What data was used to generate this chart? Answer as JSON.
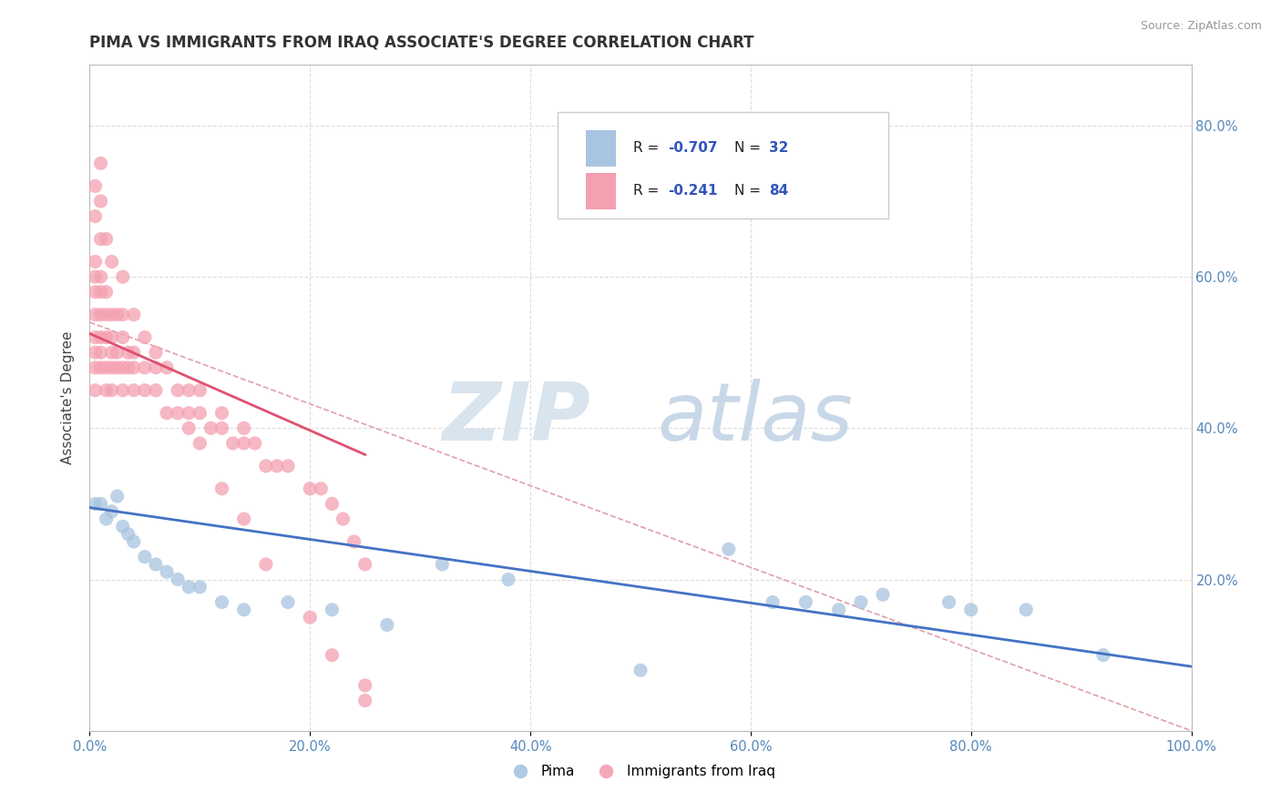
{
  "title": "PIMA VS IMMIGRANTS FROM IRAQ ASSOCIATE'S DEGREE CORRELATION CHART",
  "source": "Source: ZipAtlas.com",
  "ylabel": "Associate's Degree",
  "xlim": [
    0.0,
    1.0
  ],
  "ylim": [
    0.0,
    0.88
  ],
  "xtick_vals": [
    0.0,
    0.2,
    0.4,
    0.6,
    0.8,
    1.0
  ],
  "xtick_labels": [
    "0.0%",
    "20.0%",
    "40.0%",
    "60.0%",
    "80.0%",
    "100.0%"
  ],
  "ytick_vals": [
    0.2,
    0.4,
    0.6,
    0.8
  ],
  "ytick_labels": [
    "20.0%",
    "40.0%",
    "60.0%",
    "80.0%"
  ],
  "blue_scatter_color": "#A8C4E0",
  "pink_scatter_color": "#F4A0B0",
  "blue_line_color": "#4472C4",
  "pink_line_color": "#E05070",
  "dashed_line_color": "#E0A0A8",
  "grid_color": "#DDDDDD",
  "title_color": "#333333",
  "tick_color": "#5588BB",
  "watermark_zip_color": "#D8E4EE",
  "watermark_atlas_color": "#C8D8E8",
  "legend_box_color": "#F5F5F5",
  "legend_box_edge": "#DDDDDD",
  "legend_text_color": "#222222",
  "legend_value_color": "#3355AA",
  "pima_x": [
    0.005,
    0.01,
    0.015,
    0.02,
    0.025,
    0.03,
    0.035,
    0.04,
    0.05,
    0.06,
    0.07,
    0.08,
    0.09,
    0.1,
    0.12,
    0.14,
    0.18,
    0.22,
    0.27,
    0.32,
    0.38,
    0.5,
    0.58,
    0.62,
    0.65,
    0.68,
    0.7,
    0.72,
    0.78,
    0.8,
    0.85,
    0.92
  ],
  "pima_y": [
    0.3,
    0.3,
    0.28,
    0.29,
    0.31,
    0.27,
    0.26,
    0.25,
    0.23,
    0.22,
    0.21,
    0.2,
    0.19,
    0.19,
    0.17,
    0.16,
    0.17,
    0.16,
    0.14,
    0.22,
    0.2,
    0.08,
    0.24,
    0.17,
    0.17,
    0.16,
    0.17,
    0.18,
    0.17,
    0.16,
    0.16,
    0.1
  ],
  "iraq_x": [
    0.005,
    0.005,
    0.005,
    0.005,
    0.005,
    0.005,
    0.005,
    0.005,
    0.01,
    0.01,
    0.01,
    0.01,
    0.01,
    0.01,
    0.01,
    0.015,
    0.015,
    0.015,
    0.015,
    0.015,
    0.02,
    0.02,
    0.02,
    0.02,
    0.02,
    0.025,
    0.025,
    0.025,
    0.03,
    0.03,
    0.03,
    0.03,
    0.035,
    0.035,
    0.04,
    0.04,
    0.04,
    0.05,
    0.05,
    0.06,
    0.06,
    0.07,
    0.07,
    0.08,
    0.09,
    0.09,
    0.1,
    0.1,
    0.11,
    0.12,
    0.12,
    0.13,
    0.14,
    0.14,
    0.15,
    0.16,
    0.17,
    0.18,
    0.2,
    0.21,
    0.22,
    0.23,
    0.24,
    0.25,
    0.005,
    0.005,
    0.01,
    0.01,
    0.015,
    0.02,
    0.03,
    0.04,
    0.05,
    0.06,
    0.08,
    0.09,
    0.1,
    0.12,
    0.14,
    0.16,
    0.2,
    0.22,
    0.25,
    0.25
  ],
  "iraq_y": [
    0.58,
    0.62,
    0.55,
    0.5,
    0.52,
    0.48,
    0.45,
    0.6,
    0.65,
    0.58,
    0.52,
    0.55,
    0.5,
    0.48,
    0.6,
    0.55,
    0.52,
    0.48,
    0.58,
    0.45,
    0.55,
    0.5,
    0.52,
    0.48,
    0.45,
    0.5,
    0.55,
    0.48,
    0.55,
    0.52,
    0.48,
    0.45,
    0.5,
    0.48,
    0.5,
    0.45,
    0.48,
    0.48,
    0.45,
    0.45,
    0.48,
    0.48,
    0.42,
    0.45,
    0.42,
    0.45,
    0.42,
    0.45,
    0.4,
    0.4,
    0.42,
    0.38,
    0.38,
    0.4,
    0.38,
    0.35,
    0.35,
    0.35,
    0.32,
    0.32,
    0.3,
    0.28,
    0.25,
    0.22,
    0.72,
    0.68,
    0.75,
    0.7,
    0.65,
    0.62,
    0.6,
    0.55,
    0.52,
    0.5,
    0.42,
    0.4,
    0.38,
    0.32,
    0.28,
    0.22,
    0.15,
    0.1,
    0.06,
    0.04
  ],
  "blue_trend_x": [
    0.0,
    1.0
  ],
  "blue_trend_y": [
    0.295,
    0.085
  ],
  "pink_trend_x": [
    0.0,
    0.25
  ],
  "pink_trend_y": [
    0.525,
    0.365
  ],
  "dashed_trend_x": [
    0.0,
    1.0
  ],
  "dashed_trend_y": [
    0.54,
    0.0
  ]
}
